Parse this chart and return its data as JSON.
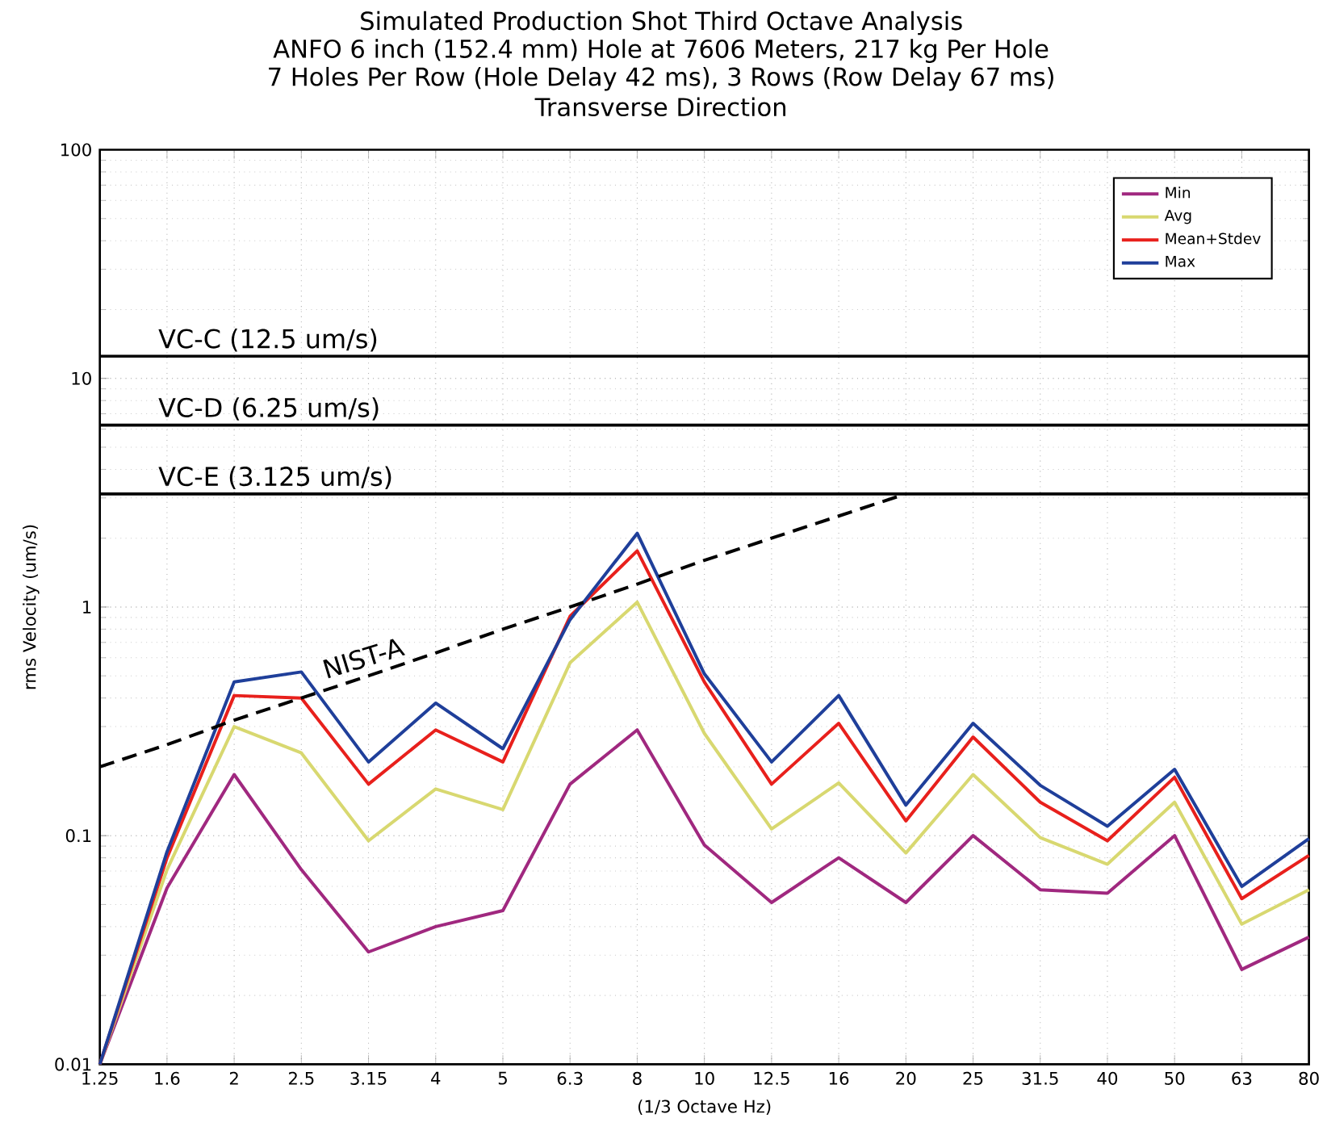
{
  "chart_data": {
    "type": "line",
    "title": "Simulated Production Shot Third Octave Analysis",
    "subtitle": "ANFO 6 inch (152.4 mm) Hole at 7606 Meters, 217 kg Per Hole",
    "annotations": [
      "7 Holes Per Row (Hole Delay 42 ms), 3 Rows (Row Delay 67 ms)",
      "Transverse Direction"
    ],
    "xlabel": "(1/3 Octave Hz)",
    "ylabel": "rms Velocity (um/s)",
    "categories": [
      "1.25",
      "1.6",
      "2",
      "2.5",
      "3.15",
      "4",
      "5",
      "6.3",
      "8",
      "10",
      "12.5",
      "16",
      "20",
      "25",
      "31.5",
      "40",
      "50",
      "63",
      "80"
    ],
    "series": [
      {
        "name": "Min",
        "color": "#a0287f",
        "values": [
          0.01,
          0.059,
          0.185,
          0.071,
          0.031,
          0.04,
          0.047,
          0.168,
          0.29,
          0.091,
          0.051,
          0.08,
          0.051,
          0.1,
          0.058,
          0.056,
          0.1,
          0.026,
          0.036
        ]
      },
      {
        "name": "Avg",
        "color": "#d8d870",
        "values": [
          0.01,
          0.071,
          0.3,
          0.23,
          0.095,
          0.16,
          0.13,
          0.57,
          1.05,
          0.28,
          0.107,
          0.17,
          0.084,
          0.185,
          0.098,
          0.075,
          0.14,
          0.041,
          0.058
        ]
      },
      {
        "name": "Mean+Stdev",
        "color": "#e8201c",
        "values": [
          0.01,
          0.08,
          0.41,
          0.4,
          0.168,
          0.29,
          0.21,
          0.91,
          1.76,
          0.47,
          0.168,
          0.31,
          0.116,
          0.27,
          0.14,
          0.095,
          0.18,
          0.053,
          0.082
        ]
      },
      {
        "name": "Max",
        "color": "#1f3f9a",
        "values": [
          0.01,
          0.085,
          0.47,
          0.52,
          0.21,
          0.38,
          0.24,
          0.88,
          2.1,
          0.51,
          0.21,
          0.41,
          0.136,
          0.31,
          0.166,
          0.11,
          0.195,
          0.06,
          0.097
        ]
      },
      {
        "name": "NIST-A",
        "color": "#000000",
        "line_style": "dashed",
        "values": [
          0.2,
          0.25,
          0.32,
          0.4,
          0.5,
          0.63,
          0.8,
          1.0,
          1.26,
          1.6,
          2.0,
          2.5,
          3.125,
          null,
          null,
          null,
          null,
          null,
          null
        ]
      }
    ],
    "ref_lines": [
      {
        "axis": "y",
        "value": 12.5,
        "label": "VC-C (12.5 um/s)",
        "color": "#000000"
      },
      {
        "axis": "y",
        "value": 6.25,
        "label": "VC-D (6.25 um/s)",
        "color": "#000000"
      },
      {
        "axis": "y",
        "value": 3.125,
        "label": "VC-E (3.125 um/s)",
        "color": "#000000"
      }
    ],
    "log": "y",
    "ylim": [
      0.01,
      100
    ],
    "yticks": [
      0.01,
      0.1,
      1,
      10,
      100
    ],
    "grid": true,
    "legend": "top right"
  }
}
